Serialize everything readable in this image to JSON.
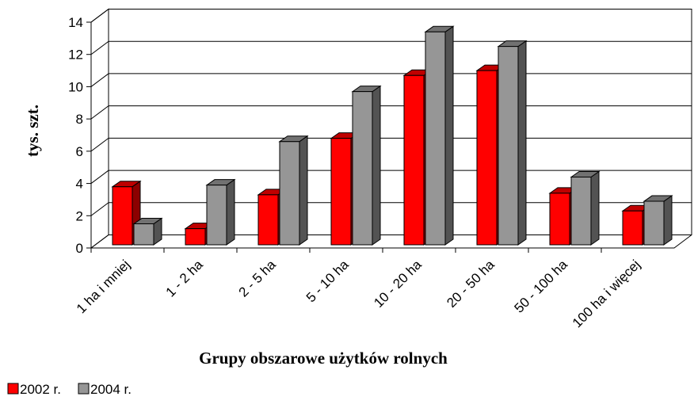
{
  "chart_data": {
    "type": "bar3d",
    "y_label": "tys. szt.",
    "x_label": "Grupy obszarowe użytków rolnych",
    "categories": [
      "1 ha i mniej",
      "1 - 2 ha",
      "2 - 5 ha",
      "5 - 10 ha",
      "10 - 20 ha",
      "20 - 50 ha",
      "50 - 100 ha",
      "100 ha i więcej"
    ],
    "series": [
      {
        "name": "2002 r.",
        "color": "#ff0000",
        "values": [
          3.6,
          1.0,
          3.1,
          6.6,
          10.5,
          10.8,
          3.2,
          2.1
        ]
      },
      {
        "name": "2004 r.",
        "color": "#969696",
        "values": [
          1.3,
          3.7,
          6.4,
          9.5,
          13.2,
          12.3,
          4.2,
          2.7
        ]
      }
    ],
    "ylim": [
      0,
      14
    ],
    "yticks": [
      0,
      2,
      4,
      6,
      8,
      10,
      12,
      14
    ],
    "grid": true,
    "legend": "bottom-left"
  }
}
